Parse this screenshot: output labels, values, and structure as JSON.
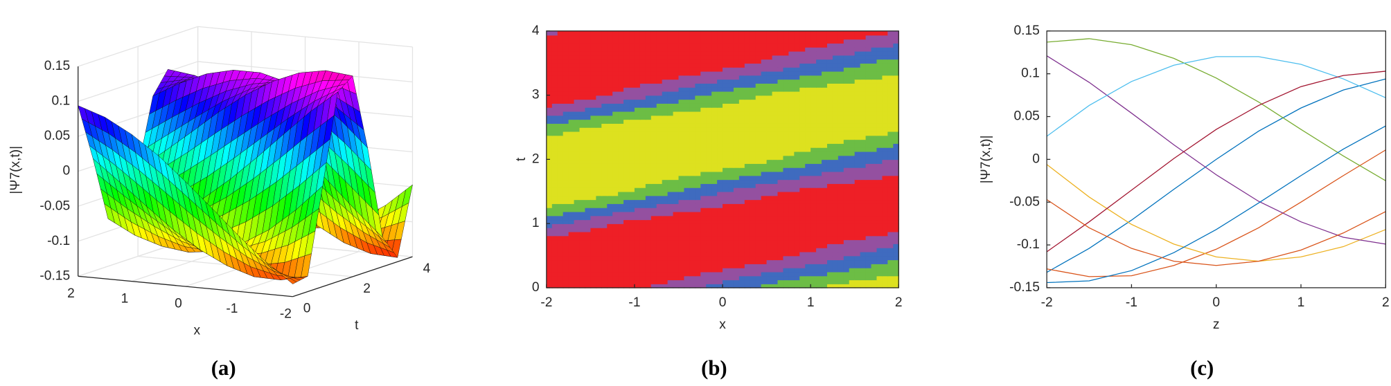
{
  "chart_data": [
    {
      "type": "surface",
      "caption": "(a)",
      "xlabel": "x",
      "ylabel": "t",
      "zlabel": "|Ψ7(x,t)|",
      "colormap": "hsv",
      "x": [
        -2,
        -1.5,
        -1,
        -0.5,
        0,
        0.5,
        1,
        1.5,
        2
      ],
      "y": [
        0,
        0.5,
        1,
        1.5,
        2,
        2.5,
        3,
        3.5,
        4
      ],
      "z": [
        [
          -0.132,
          -0.104,
          -0.071,
          -0.035,
          0,
          0.033,
          0.06,
          0.081,
          0.094
        ],
        [
          -0.128,
          -0.137,
          -0.136,
          -0.124,
          -0.105,
          -0.08,
          -0.05,
          -0.019,
          0.011
        ],
        [
          -0.006,
          -0.044,
          -0.076,
          -0.099,
          -0.114,
          -0.119,
          -0.114,
          -0.102,
          -0.082
        ],
        [
          0.121,
          0.09,
          0.054,
          0.017,
          -0.018,
          -0.049,
          -0.073,
          -0.091,
          -0.099
        ],
        [
          0.137,
          0.141,
          0.134,
          0.118,
          0.095,
          0.067,
          0.035,
          0.004,
          -0.025
        ],
        [
          0.027,
          0.063,
          0.091,
          0.11,
          0.12,
          0.12,
          0.111,
          0.094,
          0.072
        ],
        [
          -0.108,
          -0.073,
          -0.036,
          0.001,
          0.035,
          0.063,
          0.085,
          0.098,
          0.103
        ],
        [
          -0.144,
          -0.142,
          -0.13,
          -0.109,
          -0.082,
          -0.051,
          -0.019,
          0.012,
          0.039
        ],
        [
          -0.047,
          -0.08,
          -0.104,
          -0.119,
          -0.124,
          -0.119,
          -0.106,
          -0.086,
          -0.061
        ]
      ],
      "xlim": [
        -2,
        2
      ],
      "ylim": [
        0,
        4
      ],
      "zlim": [
        -0.15,
        0.15
      ],
      "xticks": [
        -2,
        -1,
        0,
        1,
        2
      ],
      "yticks": [
        0,
        2,
        4
      ],
      "zticks": [
        -0.15,
        -0.1,
        -0.05,
        0,
        0.05,
        0.1,
        0.15
      ]
    },
    {
      "type": "contour",
      "caption": "(b)",
      "xlabel": "x",
      "ylabel": "t",
      "x": [
        -2,
        -1.5,
        -1,
        -0.5,
        0,
        0.5,
        1,
        1.5,
        2
      ],
      "y": [
        0,
        0.5,
        1,
        1.5,
        2,
        2.5,
        3,
        3.5,
        4
      ],
      "z": [
        [
          -0.132,
          -0.104,
          -0.071,
          -0.035,
          0,
          0.033,
          0.06,
          0.081,
          0.094
        ],
        [
          -0.128,
          -0.137,
          -0.136,
          -0.124,
          -0.105,
          -0.08,
          -0.05,
          -0.019,
          0.011
        ],
        [
          -0.006,
          -0.044,
          -0.076,
          -0.099,
          -0.114,
          -0.119,
          -0.114,
          -0.102,
          -0.082
        ],
        [
          0.121,
          0.09,
          0.054,
          0.017,
          -0.018,
          -0.049,
          -0.073,
          -0.091,
          -0.099
        ],
        [
          0.137,
          0.141,
          0.134,
          0.118,
          0.095,
          0.067,
          0.035,
          0.004,
          -0.025
        ],
        [
          0.027,
          0.063,
          0.091,
          0.11,
          0.12,
          0.12,
          0.111,
          0.094,
          0.072
        ],
        [
          -0.108,
          -0.073,
          -0.036,
          0.001,
          0.035,
          0.063,
          0.085,
          0.098,
          0.103
        ],
        [
          -0.144,
          -0.142,
          -0.13,
          -0.109,
          -0.082,
          -0.051,
          -0.019,
          0.012,
          0.039
        ],
        [
          -0.047,
          -0.08,
          -0.104,
          -0.119,
          -0.124,
          -0.119,
          -0.106,
          -0.086,
          -0.061
        ]
      ],
      "levels": [
        -0.15,
        -0.06,
        -0.02,
        0.02,
        0.06,
        0.15
      ],
      "colors": [
        "#ee1f26",
        "#9450a0",
        "#3f6bbf",
        "#6cbd45",
        "#dde11f"
      ],
      "xlim": [
        -2,
        2
      ],
      "ylim": [
        0,
        4
      ],
      "xticks": [
        -2,
        -1,
        0,
        1,
        2
      ],
      "yticks": [
        0,
        1,
        2,
        3,
        4
      ]
    },
    {
      "type": "line",
      "caption": "(c)",
      "xlabel": "z",
      "ylabel": "|Ψ7(x,t)|",
      "x": [
        -2,
        -1.5,
        -1,
        -0.5,
        0,
        0.5,
        1,
        1.5,
        2
      ],
      "series": [
        {
          "color": "#0072bd",
          "values": [
            -0.132,
            -0.104,
            -0.071,
            -0.035,
            0,
            0.033,
            0.06,
            0.081,
            0.094
          ]
        },
        {
          "color": "#d95319",
          "values": [
            -0.128,
            -0.137,
            -0.136,
            -0.124,
            -0.105,
            -0.08,
            -0.05,
            -0.019,
            0.011
          ]
        },
        {
          "color": "#edb120",
          "values": [
            -0.006,
            -0.044,
            -0.076,
            -0.099,
            -0.114,
            -0.119,
            -0.114,
            -0.102,
            -0.082
          ]
        },
        {
          "color": "#7e2f8e",
          "values": [
            0.121,
            0.09,
            0.054,
            0.017,
            -0.018,
            -0.049,
            -0.073,
            -0.091,
            -0.099
          ]
        },
        {
          "color": "#77ac30",
          "values": [
            0.137,
            0.141,
            0.134,
            0.118,
            0.095,
            0.067,
            0.035,
            0.004,
            -0.025
          ]
        },
        {
          "color": "#4dbeee",
          "values": [
            0.027,
            0.063,
            0.091,
            0.11,
            0.12,
            0.12,
            0.111,
            0.094,
            0.072
          ]
        },
        {
          "color": "#a2142f",
          "values": [
            -0.108,
            -0.073,
            -0.036,
            0.001,
            0.035,
            0.063,
            0.085,
            0.098,
            0.103
          ]
        },
        {
          "color": "#0072bd",
          "values": [
            -0.144,
            -0.142,
            -0.13,
            -0.109,
            -0.082,
            -0.051,
            -0.019,
            0.012,
            0.039
          ]
        },
        {
          "color": "#d95319",
          "values": [
            -0.047,
            -0.08,
            -0.104,
            -0.119,
            -0.124,
            -0.119,
            -0.106,
            -0.086,
            -0.061
          ]
        }
      ],
      "xlim": [
        -2,
        2
      ],
      "ylim": [
        -0.15,
        0.15
      ],
      "xticks": [
        -2,
        -1,
        0,
        1,
        2
      ],
      "yticks": [
        -0.15,
        -0.1,
        -0.05,
        0,
        0.05,
        0.1,
        0.15
      ]
    }
  ]
}
